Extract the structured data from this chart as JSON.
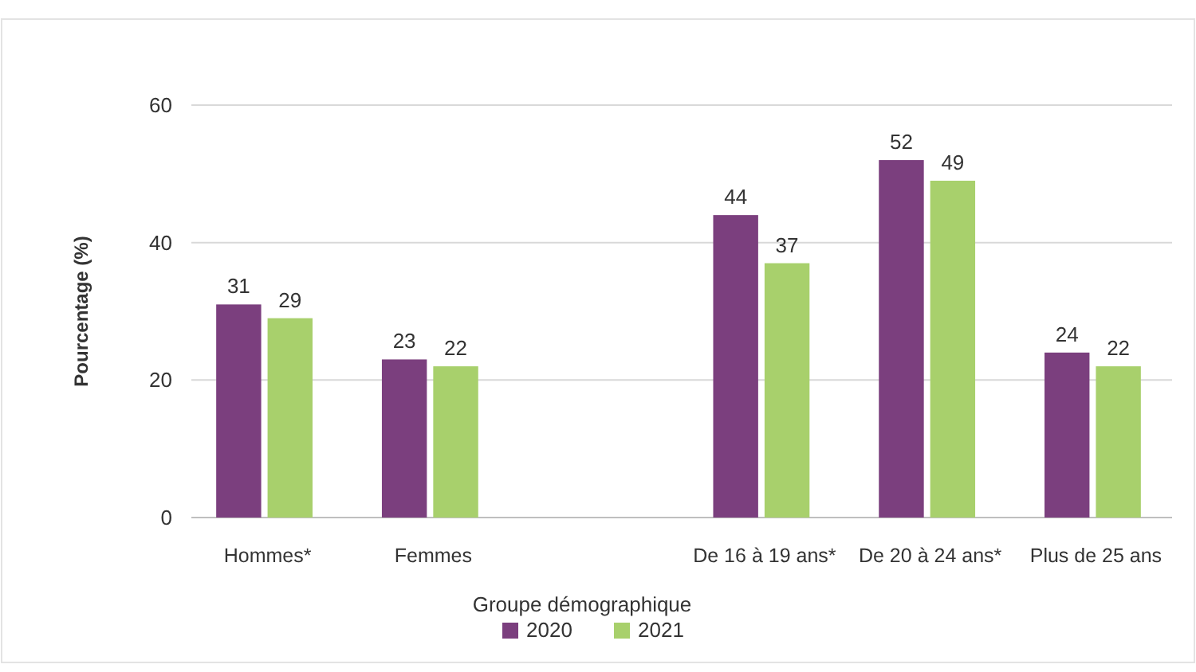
{
  "chart_data": {
    "type": "bar",
    "xlabel": "Groupe démographique",
    "ylabel": "Pourcentage (%)",
    "categories": [
      "Hommes*",
      "Femmes",
      null,
      "De 16 à 19 ans*",
      "De 20 à 24 ans*",
      "Plus de 25 ans"
    ],
    "series": [
      {
        "name": "2020",
        "color": "#7b3f7e",
        "values": [
          31,
          23,
          null,
          44,
          52,
          24
        ]
      },
      {
        "name": "2021",
        "color": "#a8d06c",
        "values": [
          29,
          22,
          null,
          37,
          49,
          22
        ]
      }
    ],
    "ylim": [
      0,
      60
    ],
    "yticks": [
      0,
      20,
      40,
      60
    ],
    "grid": "y",
    "legend": "bottom",
    "data_labels": true
  }
}
